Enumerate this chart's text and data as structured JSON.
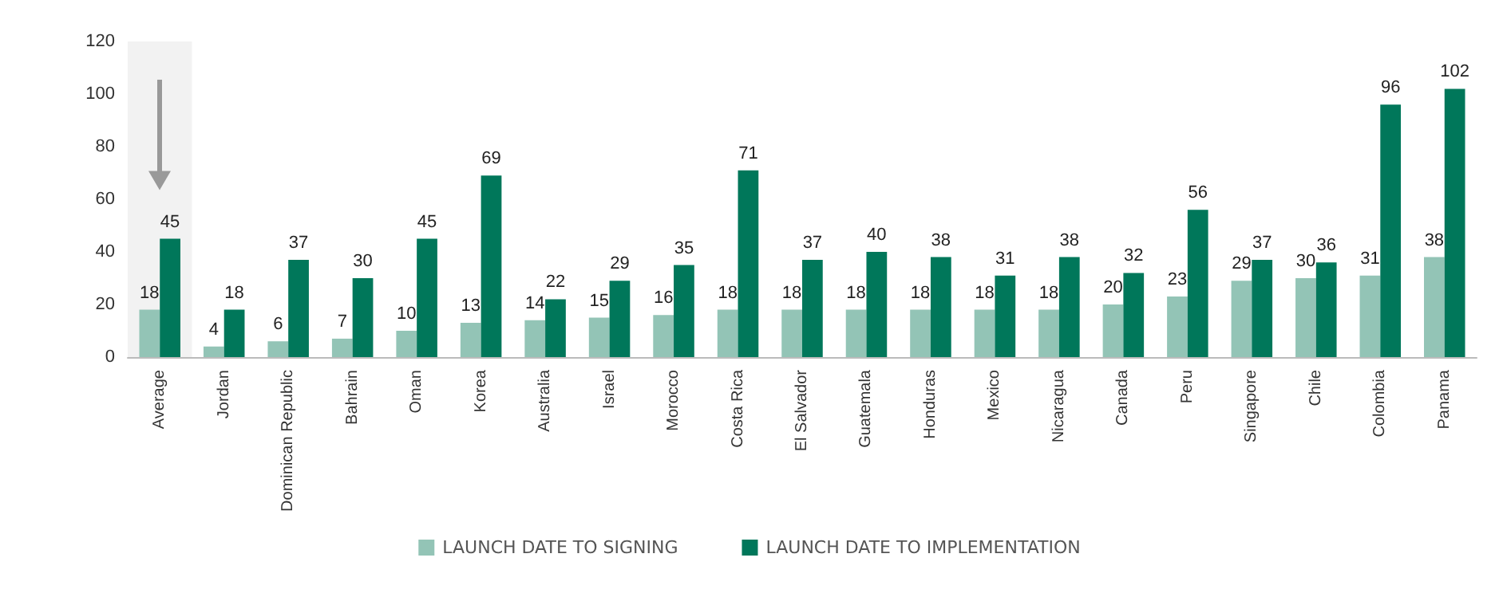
{
  "chart_data": {
    "type": "bar",
    "categories": [
      "Average",
      "Jordan",
      "Dominican Republic",
      "Bahrain",
      "Oman",
      "Korea",
      "Australia",
      "Israel",
      "Morocco",
      "Costa Rica",
      "El Salvador",
      "Guatemala",
      "Honduras",
      "Mexico",
      "Nicaragua",
      "Canada",
      "Peru",
      "Singapore",
      "Chile",
      "Colombia",
      "Panama"
    ],
    "series": [
      {
        "name": "LAUNCH DATE TO SIGNING",
        "color": "#93c4b6",
        "values": [
          18,
          4,
          6,
          7,
          10,
          13,
          14,
          15,
          16,
          18,
          18,
          18,
          18,
          18,
          18,
          20,
          23,
          29,
          30,
          31,
          38
        ]
      },
      {
        "name": "LAUNCH DATE TO IMPLEMENTATION",
        "color": "#00775a",
        "values": [
          45,
          18,
          37,
          30,
          45,
          69,
          22,
          29,
          35,
          71,
          37,
          40,
          38,
          31,
          38,
          32,
          56,
          37,
          36,
          96,
          102
        ]
      }
    ],
    "ylim": [
      0,
      120
    ],
    "yticks": [
      0,
      20,
      40,
      60,
      80,
      100,
      120
    ],
    "grid": false,
    "legend": "bottom",
    "data_labels": true,
    "bands": [
      {
        "axis": "x",
        "from": "Average",
        "to": "Average",
        "color": "#f2f2f2"
      }
    ]
  }
}
